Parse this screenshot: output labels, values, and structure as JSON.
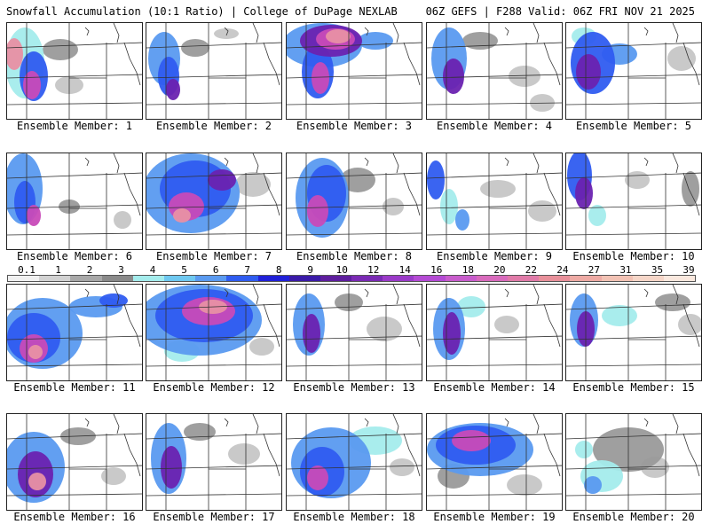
{
  "header": {
    "left": "Snowfall Accumulation (10:1 Ratio) | College of DuPage NEXLAB",
    "right": "06Z GEFS | F288 Valid: 06Z FRI NOV 21 2025"
  },
  "legend": {
    "ticks": [
      "0.1",
      "1",
      "2",
      "3",
      "4",
      "5",
      "6",
      "7",
      "8",
      "9",
      "10",
      "12",
      "14",
      "16",
      "18",
      "20",
      "22",
      "24",
      "27",
      "31",
      "35",
      "39"
    ],
    "colors": [
      "#f0f0f0",
      "#d2d2d2",
      "#a8a8a8",
      "#8a8a8a",
      "#a4ecec",
      "#6ec8f0",
      "#5a9af0",
      "#2f5cf0",
      "#2020d8",
      "#3a1aa8",
      "#5e1e9e",
      "#7a2ab4",
      "#9a3ac8",
      "#b44ad4",
      "#c85ccc",
      "#d86abc",
      "#e07aa8",
      "#e8909a",
      "#eeaaa4",
      "#f2c2b4",
      "#f6d6c8",
      "#fae8de"
    ]
  },
  "panel_label_prefix": "Ensemble Member: ",
  "members": [
    {
      "id": 1,
      "label": "Ensemble Member: 1"
    },
    {
      "id": 2,
      "label": "Ensemble Member: 2"
    },
    {
      "id": 3,
      "label": "Ensemble Member: 3"
    },
    {
      "id": 4,
      "label": "Ensemble Member: 4"
    },
    {
      "id": 5,
      "label": "Ensemble Member: 5"
    },
    {
      "id": 6,
      "label": "Ensemble Member: 6"
    },
    {
      "id": 7,
      "label": "Ensemble Member: 7"
    },
    {
      "id": 8,
      "label": "Ensemble Member: 8"
    },
    {
      "id": 9,
      "label": "Ensemble Member: 9"
    },
    {
      "id": 10,
      "label": "Ensemble Member: 10"
    },
    {
      "id": 11,
      "label": "Ensemble Member: 11"
    },
    {
      "id": 12,
      "label": "Ensemble Member: 12"
    },
    {
      "id": 13,
      "label": "Ensemble Member: 13"
    },
    {
      "id": 14,
      "label": "Ensemble Member: 14"
    },
    {
      "id": 15,
      "label": "Ensemble Member: 15"
    },
    {
      "id": 16,
      "label": "Ensemble Member: 16"
    },
    {
      "id": 17,
      "label": "Ensemble Member: 17"
    },
    {
      "id": 18,
      "label": "Ensemble Member: 18"
    },
    {
      "id": 19,
      "label": "Ensemble Member: 19"
    },
    {
      "id": 20,
      "label": "Ensemble Member: 20"
    }
  ]
}
